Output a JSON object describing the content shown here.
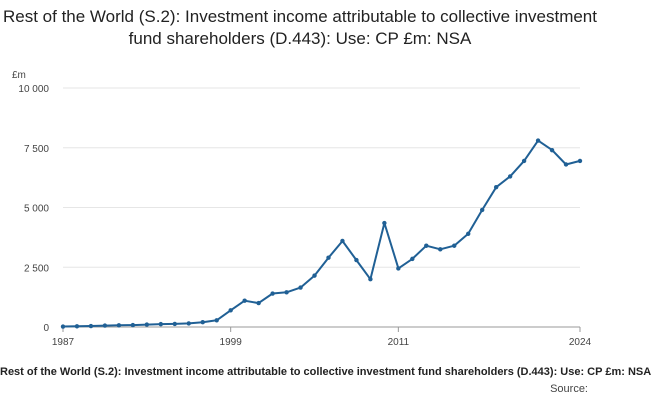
{
  "chart_data": {
    "type": "line",
    "title": "Rest of the World (S.2): Investment income attributable to collective investment fund shareholders (D.443): Use: CP £m: NSA",
    "unit_label": "£m",
    "x_ticks": [
      "1987",
      "1999",
      "2011",
      "2024"
    ],
    "y_ticks": [
      "0",
      "2 500",
      "5 000",
      "7 500",
      "10 000"
    ],
    "ylim": [
      0,
      10000
    ],
    "xlim": [
      1987,
      2024
    ],
    "grid": "horizontal",
    "legend": "bottom",
    "series": [
      {
        "name": "Rest of the World (S.2): Investment income attributable to collective investment fund shareholders (D.443): Use: CP £m: NSA",
        "color": "#206095",
        "x": [
          1987,
          1988,
          1989,
          1990,
          1991,
          1992,
          1993,
          1994,
          1995,
          1996,
          1997,
          1998,
          1999,
          2000,
          2001,
          2002,
          2003,
          2004,
          2005,
          2006,
          2007,
          2008,
          2009,
          2010,
          2011,
          2012,
          2013,
          2014,
          2015,
          2016,
          2017,
          2018,
          2019,
          2020,
          2021,
          2022,
          2023,
          2024
        ],
        "values": [
          20,
          30,
          40,
          60,
          70,
          80,
          100,
          120,
          130,
          150,
          200,
          280,
          700,
          1100,
          1000,
          1400,
          1450,
          1650,
          2150,
          2900,
          3600,
          2800,
          2000,
          4350,
          2450,
          2850,
          3400,
          3250,
          3400,
          3900,
          4900,
          5850,
          6300,
          6950,
          7800,
          7400,
          6800,
          6950
        ]
      }
    ],
    "source_label": "Source:"
  }
}
